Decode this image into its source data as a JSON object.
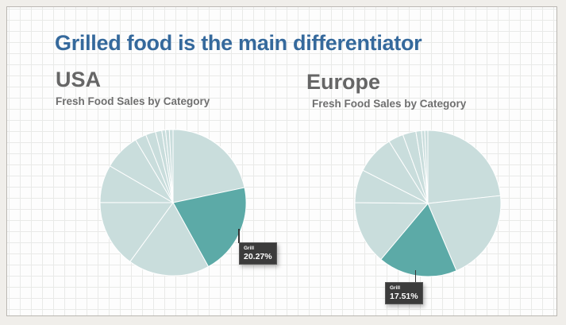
{
  "page": {
    "title_label": "Grilled food is the main differentiator"
  },
  "colors": {
    "title": "#35699c",
    "heading": "#666666",
    "subtitle": "#6f6f6f",
    "slice_normal": "#c9dddc",
    "slice_highlight": "#5caaa7",
    "tooltip_bg": "#3b3b3b",
    "tooltip_text": "#ffffff"
  },
  "charts": [
    {
      "heading": "USA",
      "subtitle": "Fresh Food Sales by Category",
      "tooltip": {
        "label": "Grill",
        "value": "20.27%"
      }
    },
    {
      "heading": "Europe",
      "subtitle": "Fresh Food Sales by Category",
      "tooltip": {
        "label": "Grill",
        "value": "17.51%"
      }
    }
  ],
  "chart_data": [
    {
      "type": "pie",
      "region": "USA",
      "title": "Fresh Food Sales by Category",
      "unit": "percent",
      "start_angle": "12-oclock",
      "direction": "clockwise",
      "values": [
        21.7,
        20.27,
        18.06,
        15.0,
        8.33,
        8.06,
        2.5,
        2.2,
        1.4,
        0.83,
        0.83,
        0.82
      ],
      "highlight_index": 1,
      "highlight_label": "Grill",
      "highlight_value": 20.27,
      "legend": "none",
      "slice_labels": "hidden"
    },
    {
      "type": "pie",
      "region": "Europe",
      "title": "Fresh Food Sales by Category",
      "unit": "percent",
      "start_angle": "12-oclock",
      "direction": "clockwise",
      "values": [
        23.3,
        20.3,
        17.51,
        14.06,
        7.33,
        8.61,
        3.33,
        2.92,
        1.25,
        0.7,
        0.69
      ],
      "highlight_index": 2,
      "highlight_label": "Grill",
      "highlight_value": 17.51,
      "legend": "none",
      "slice_labels": "hidden"
    }
  ]
}
